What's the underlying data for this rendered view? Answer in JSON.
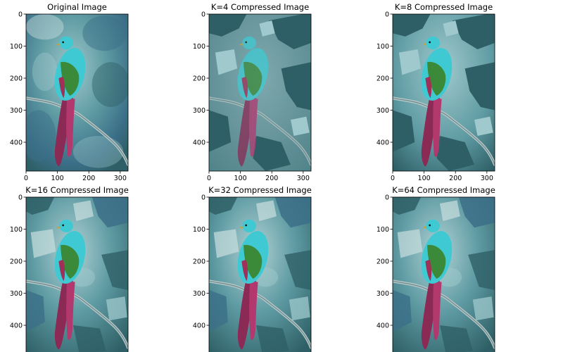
{
  "figure": {
    "panels": [
      {
        "title": "Original Image",
        "variant": "original"
      },
      {
        "title": "K=4 Compressed Image",
        "variant": "k4"
      },
      {
        "title": "K=8 Compressed Image",
        "variant": "k8"
      },
      {
        "title": "K=16 Compressed Image",
        "variant": "k16"
      },
      {
        "title": "K=32 Compressed Image",
        "variant": "k32"
      },
      {
        "title": "K=64 Compressed Image",
        "variant": "k64"
      }
    ],
    "x_ticks": [
      "0",
      "100",
      "200",
      "300"
    ],
    "y_ticks": [
      "0",
      "100",
      "200",
      "300",
      "400"
    ],
    "image_width": 325,
    "image_height": 490,
    "colors": {
      "bg_dark": "#2e5f66",
      "bg_mid": "#5f9ba3",
      "bg_light": "#9fc9cc",
      "leaf_pale": "#c9dede",
      "bird_cyan": "#3fc9d2",
      "bird_green": "#3a8a3a",
      "bird_tail": "#8a2a55",
      "branch": "#b8c8c8"
    }
  }
}
